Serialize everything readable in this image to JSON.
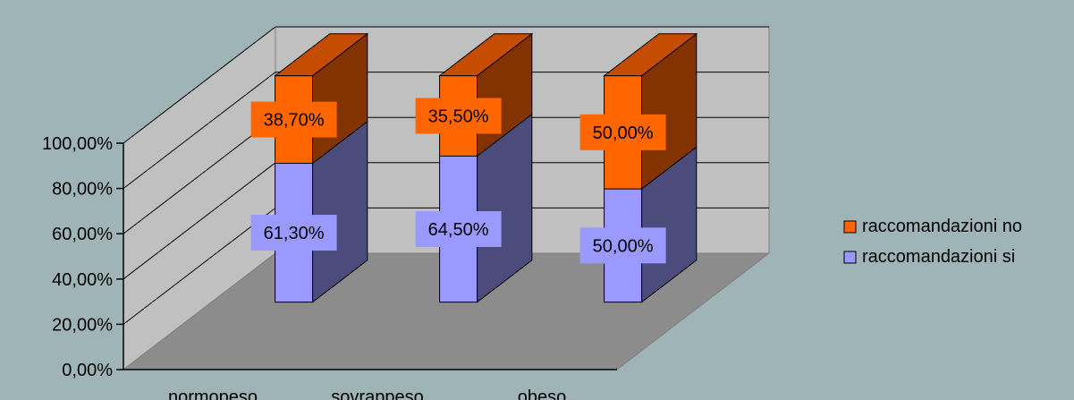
{
  "chart_data": {
    "type": "bar",
    "stacked": true,
    "three_d": true,
    "categories": [
      "normopeso",
      "sovrappeso",
      "obeso"
    ],
    "series": [
      {
        "name": "raccomandazioni si",
        "values": [
          61.3,
          64.5,
          50.0
        ],
        "labels": [
          "61,30%",
          "64,50%",
          "50,00%"
        ],
        "color": "#9999ff",
        "side_color": "#4b4b7c",
        "top_color": "#6f6fc0"
      },
      {
        "name": "raccomandazioni no",
        "values": [
          38.7,
          35.5,
          50.0
        ],
        "labels": [
          "38,70%",
          "35,50%",
          "50,00%"
        ],
        "color": "#ff6600",
        "side_color": "#833300",
        "top_color": "#c64d00"
      }
    ],
    "y_ticks": [
      "0,00%",
      "20,00%",
      "40,00%",
      "60,00%",
      "80,00%",
      "100,00%"
    ],
    "ylim": [
      0,
      100
    ],
    "grid": true,
    "legend_position": "right",
    "colors": {
      "background": "#9fb4b6",
      "back_wall": "#c0c0c0",
      "side_wall": "#c0c0c0",
      "floor": "#8c8c8c",
      "grid": "#000000"
    }
  }
}
